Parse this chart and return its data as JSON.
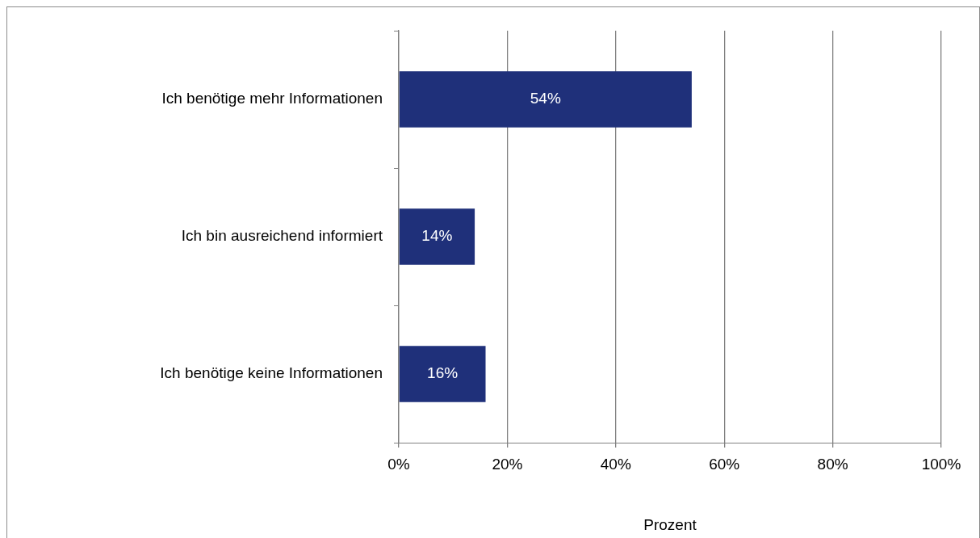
{
  "chart_data": {
    "type": "bar",
    "orientation": "horizontal",
    "categories": [
      "Ich benötige mehr Informationen",
      "Ich bin ausreichend informiert",
      "Ich benötige keine Informationen"
    ],
    "values": [
      54,
      14,
      16
    ],
    "value_labels": [
      "54%",
      "14%",
      "16%"
    ],
    "color": "#1f307a",
    "xlabel": "Prozent",
    "xlim": [
      0,
      100
    ],
    "xticks": [
      {
        "value": 0,
        "label": "0%"
      },
      {
        "value": 20,
        "label": "20%"
      },
      {
        "value": 40,
        "label": "40%"
      },
      {
        "value": 60,
        "label": "60%"
      },
      {
        "value": 80,
        "label": "80%"
      },
      {
        "value": 100,
        "label": "100%"
      }
    ],
    "grid": "x"
  }
}
